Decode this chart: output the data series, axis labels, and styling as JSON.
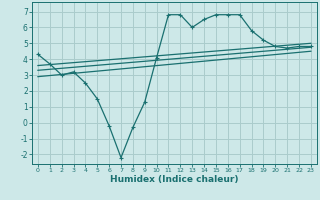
{
  "background_color": "#cde8e8",
  "grid_color": "#aacccc",
  "line_color": "#1a7070",
  "xlabel": "Humidex (Indice chaleur)",
  "ylim": [
    -2.6,
    7.6
  ],
  "xlim": [
    -0.5,
    23.5
  ],
  "yticks": [
    -2,
    -1,
    0,
    1,
    2,
    3,
    4,
    5,
    6,
    7
  ],
  "xticks": [
    0,
    1,
    2,
    3,
    4,
    5,
    6,
    7,
    8,
    9,
    10,
    11,
    12,
    13,
    14,
    15,
    16,
    17,
    18,
    19,
    20,
    21,
    22,
    23
  ],
  "line1_x": [
    0,
    1,
    2,
    3,
    4,
    5,
    6,
    7,
    8,
    9,
    10,
    11,
    12,
    13,
    14,
    15,
    16,
    17,
    18,
    19,
    20,
    21,
    22,
    23
  ],
  "line1_y": [
    4.3,
    3.7,
    3.0,
    3.2,
    2.5,
    1.5,
    -0.2,
    -2.2,
    -0.3,
    1.3,
    4.1,
    6.8,
    6.8,
    6.0,
    6.5,
    6.8,
    6.8,
    6.8,
    5.8,
    5.2,
    4.8,
    4.7,
    4.8,
    4.8
  ],
  "line2_x": [
    0,
    23
  ],
  "line2_y": [
    3.6,
    5.0
  ],
  "line3_x": [
    0,
    23
  ],
  "line3_y": [
    3.3,
    4.75
  ],
  "line4_x": [
    0,
    23
  ],
  "line4_y": [
    2.9,
    4.5
  ]
}
